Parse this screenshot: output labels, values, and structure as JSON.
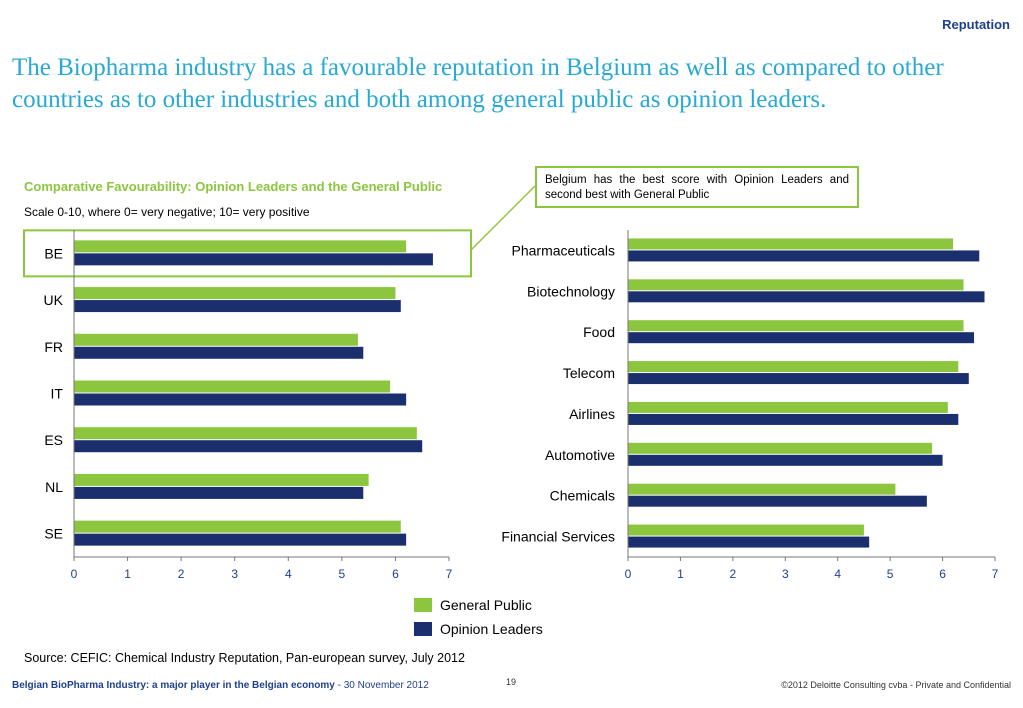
{
  "header": {
    "section": "Reputation",
    "title": "The Biopharma industry has a favourable reputation in Belgium as well as compared to other countries as to other industries and both among general public as opinion leaders."
  },
  "colors": {
    "general_public": "#8cc63f",
    "opinion_leaders": "#1b2f6e",
    "axis_text": "#1f3f8f",
    "title_blue": "#27a9d6"
  },
  "callout": "Belgium has the best score with Opinion Leaders and second best with General Public",
  "legend": {
    "general_public": "General Public",
    "opinion_leaders": "Opinion Leaders"
  },
  "chart_data": [
    {
      "type": "bar",
      "orientation": "horizontal",
      "title": "Comparative Favourability: Opinion Leaders and the General Public",
      "subtitle": "Scale 0-10, where 0= very negative; 10= very positive",
      "categories": [
        "BE",
        "UK",
        "FR",
        "IT",
        "ES",
        "NL",
        "SE"
      ],
      "series": [
        {
          "name": "General Public",
          "values": [
            6.2,
            6.0,
            5.3,
            5.9,
            6.4,
            5.5,
            6.1
          ]
        },
        {
          "name": "Opinion Leaders",
          "values": [
            6.7,
            6.1,
            5.4,
            6.2,
            6.5,
            5.4,
            6.2
          ]
        }
      ],
      "xlim": [
        0,
        7
      ],
      "xticks": [
        0,
        1,
        2,
        3,
        4,
        5,
        6,
        7
      ],
      "highlight": "BE",
      "grid": false,
      "legend": "bottom-center"
    },
    {
      "type": "bar",
      "orientation": "horizontal",
      "categories": [
        "Pharmaceuticals",
        "Biotechnology",
        "Food",
        "Telecom",
        "Airlines",
        "Automotive",
        "Chemicals",
        "Financial Services"
      ],
      "series": [
        {
          "name": "General Public",
          "values": [
            6.2,
            6.4,
            6.4,
            6.3,
            6.1,
            5.8,
            5.1,
            4.5
          ]
        },
        {
          "name": "Opinion Leaders",
          "values": [
            6.7,
            6.8,
            6.6,
            6.5,
            6.3,
            6.0,
            5.7,
            4.6
          ]
        }
      ],
      "xlim": [
        0,
        7
      ],
      "xticks": [
        0,
        1,
        2,
        3,
        4,
        5,
        6,
        7
      ],
      "grid": false
    }
  ],
  "footer": {
    "source": "Source: CEFIC: Chemical Industry Reputation, Pan-european survey, July 2012",
    "left_bold": "Belgian BioPharma Industry: a major player in the Belgian economy",
    "left_date": " - 30 November 2012",
    "page": "19",
    "right": "©2012 Deloitte Consulting cvba - Private and Confidential"
  }
}
